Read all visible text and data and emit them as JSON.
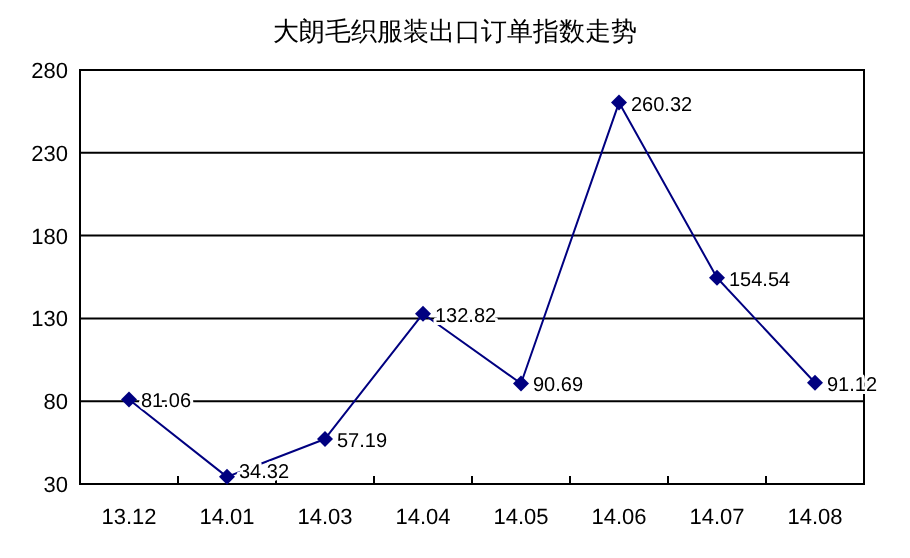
{
  "chart_data": {
    "type": "line",
    "title": "大朗毛织服装出口订单指数走势",
    "categories": [
      "13.12",
      "14.01",
      "14.03",
      "14.04",
      "14.05",
      "14.06",
      "14.07",
      "14.08"
    ],
    "series": [
      {
        "color": "#000080",
        "values": [
          81.06,
          34.32,
          57.19,
          132.82,
          90.69,
          260.32,
          154.54,
          91.12
        ]
      }
    ],
    "ylim": [
      30,
      280
    ],
    "yticks": [
      30,
      80,
      130,
      180,
      230,
      280
    ],
    "grid": "y",
    "marker": "diamond",
    "line_style": "solid",
    "data_labels": true
  }
}
